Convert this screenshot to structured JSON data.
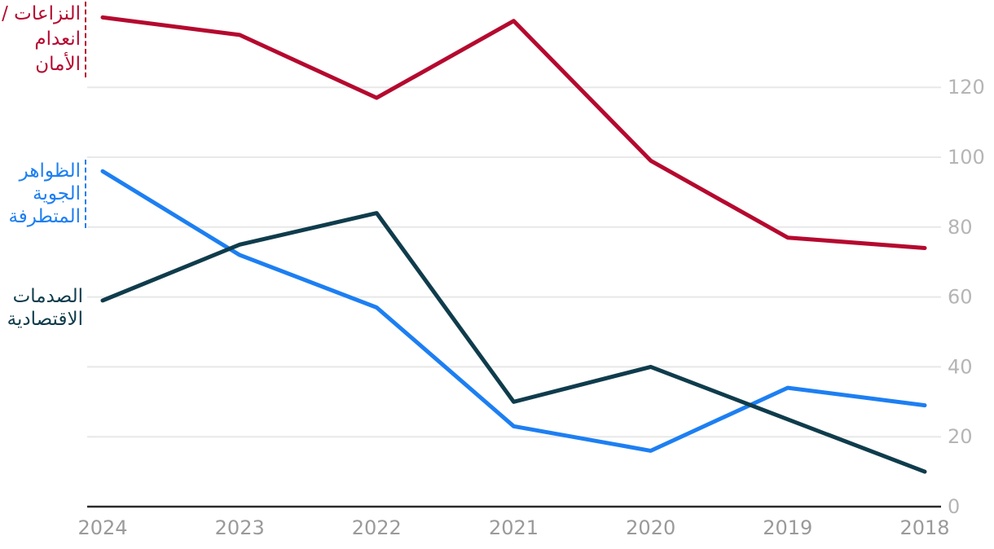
{
  "chart_data": {
    "type": "line",
    "title": "",
    "direction": "rtl",
    "x_labels": [
      "2024",
      "2023",
      "2022",
      "2021",
      "2020",
      "2019",
      "2018"
    ],
    "y_ticks": [
      0,
      20,
      40,
      60,
      80,
      100,
      120
    ],
    "ylim": [
      0,
      145
    ],
    "grid": "horizontal",
    "legend_position": "direct-labels-left",
    "series": [
      {
        "id": "conflict-insecurity",
        "label": "النزاعات / انعدام الأمان",
        "label_lines": [
          "النزاعات /",
          "انعدام",
          "الأمان"
        ],
        "color": "#b5092f",
        "values": [
          140,
          135,
          117,
          139,
          99,
          77,
          74
        ]
      },
      {
        "id": "extreme-weather",
        "label": "الظواهر الجوية المتطرفة",
        "label_lines": [
          "الظواهر",
          "الجوية",
          "المتطرفة"
        ],
        "color": "#1d7ff2",
        "values": [
          96,
          72,
          57,
          23,
          16,
          34,
          29
        ]
      },
      {
        "id": "economic-shocks",
        "label": "الصدمات الاقتصادية",
        "label_lines": [
          "الصدمات",
          "الاقتصادية"
        ],
        "color": "#0f3c4c",
        "values": [
          59,
          75,
          84,
          30,
          40,
          25,
          10
        ]
      }
    ],
    "colors": {
      "gridline": "#e8e8e8",
      "axis_line": "#2b2b2b",
      "x_tick_text": "#9a9a9a",
      "y_tick_text": "#b5b5b5"
    }
  }
}
